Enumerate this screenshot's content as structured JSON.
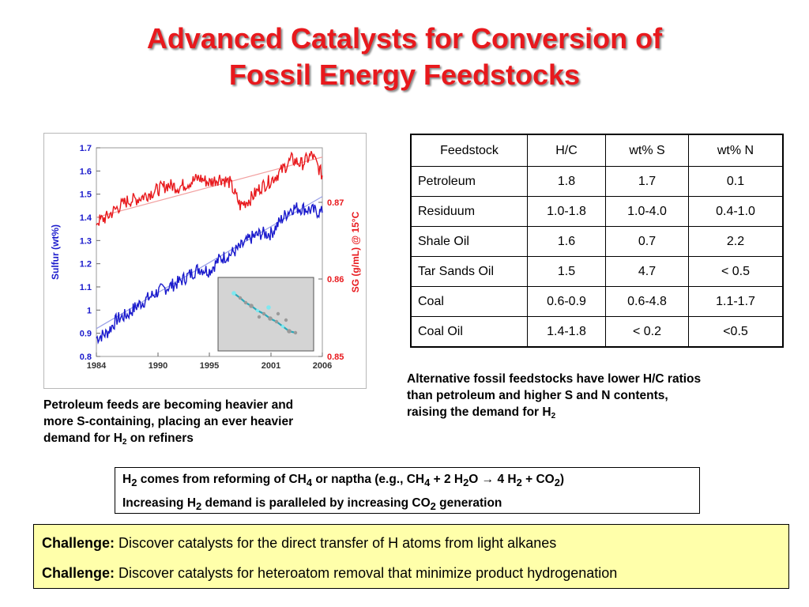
{
  "title": {
    "line1": "Advanced Catalysts for Conversion of",
    "line2": "Fossil Energy Feedstocks"
  },
  "chart_data": {
    "type": "line",
    "x_ticks": [
      "1984",
      "1990",
      "1995",
      "2001",
      "2006"
    ],
    "x_range": [
      1984,
      2006
    ],
    "y_left": {
      "label": "Sulfur (wt%)",
      "ticks": [
        "1.7",
        "1.6",
        "1.5",
        "1.4",
        "1.3",
        "1.2",
        "1.1",
        "1",
        "0.9",
        "0.8"
      ],
      "range": [
        0.8,
        1.7
      ],
      "color": "#1a1acc"
    },
    "y_right": {
      "label": "SG (g/mL) @ 15°C",
      "ticks": [
        "0.87",
        "0.86",
        "0.85"
      ],
      "color": "#e8191d"
    },
    "series": [
      {
        "axis": "left",
        "color": "#1a1acc",
        "x": [
          1984,
          1985,
          1986,
          1987,
          1988,
          1989,
          1990,
          1991,
          1992,
          1993,
          1994,
          1995,
          1996,
          1997,
          1998,
          1999,
          2000,
          2001,
          2002,
          2003,
          2004,
          2005,
          2006
        ],
        "y": [
          0.88,
          0.9,
          0.96,
          0.98,
          1.02,
          1.05,
          1.08,
          1.1,
          1.12,
          1.15,
          1.18,
          1.17,
          1.22,
          1.24,
          1.27,
          1.31,
          1.33,
          1.33,
          1.39,
          1.44,
          1.44,
          1.43,
          1.42
        ]
      },
      {
        "axis": "left",
        "color": "#e8191d",
        "x": [
          1984,
          1985,
          1986,
          1987,
          1988,
          1989,
          1990,
          1991,
          1992,
          1993,
          1994,
          1995,
          1996,
          1997,
          1998,
          1999,
          2000,
          2001,
          2002,
          2003,
          2004,
          2005,
          2006
        ],
        "y": [
          1.38,
          1.4,
          1.44,
          1.47,
          1.48,
          1.5,
          1.52,
          1.54,
          1.53,
          1.55,
          1.57,
          1.55,
          1.57,
          1.55,
          1.45,
          1.48,
          1.53,
          1.56,
          1.6,
          1.65,
          1.63,
          1.67,
          1.58
        ]
      }
    ],
    "trend_lines": [
      {
        "color": "#9aa0e8",
        "x": [
          1984,
          2006
        ],
        "y": [
          0.92,
          1.49
        ]
      },
      {
        "color": "#f2a0a0",
        "x": [
          1984,
          2006
        ],
        "y": [
          1.4,
          1.66
        ]
      }
    ],
    "inset": "molecule-image"
  },
  "table": {
    "headers": [
      "Feedstock",
      "H/C",
      "wt% S",
      "wt% N"
    ],
    "rows": [
      [
        "Petroleum",
        "1.8",
        "1.7",
        "0.1"
      ],
      [
        "Residuum",
        "1.0-1.8",
        "1.0-4.0",
        "0.4-1.0"
      ],
      [
        "Shale Oil",
        "1.6",
        "0.7",
        "2.2"
      ],
      [
        "Tar Sands Oil",
        "1.5",
        "4.7",
        "< 0.5"
      ],
      [
        "Coal",
        "0.6-0.9",
        "0.6-4.8",
        "1.1-1.7"
      ],
      [
        "Coal Oil",
        "1.4-1.8",
        "< 0.2",
        "<0.5"
      ]
    ]
  },
  "captions": {
    "left_line1": "Petroleum feeds are becoming heavier and",
    "left_line2": "more S-containing, placing an ever heavier",
    "left_line3_a": "demand for H",
    "left_line3_sub": "2",
    "left_line3_b": " on refiners",
    "right_line1": "Alternative fossil feedstocks have lower H/C ratios",
    "right_line2": "than petroleum and higher S and N contents,",
    "right_line3_a": "raising the demand for H",
    "right_line3_sub": "2"
  },
  "h2_box": {
    "l1_a": "H",
    "l1_s1": "2",
    "l1_b": " comes from reforming of CH",
    "l1_s2": "4",
    "l1_c": " or naptha (e.g., CH",
    "l1_s3": "4",
    "l1_d": " + 2 H",
    "l1_s4": "2",
    "l1_e": "O → 4 H",
    "l1_s5": "2",
    "l1_f": " + CO",
    "l1_s6": "2",
    "l1_g": ")",
    "l2_a": "Increasing H",
    "l2_s1": "2",
    "l2_b": " demand is paralleled by increasing CO",
    "l2_s2": "2",
    "l2_c": " generation"
  },
  "challenges": [
    {
      "label": "Challenge:",
      "text": " Discover catalysts for the direct transfer of H atoms from light alkanes"
    },
    {
      "label": "Challenge:",
      "text": " Discover catalysts for heteroatom removal that minimize product hydrogenation"
    }
  ],
  "colors": {
    "title": "#e8191d",
    "challenge_bg": "#ffffaa",
    "sulfur": "#1a1acc",
    "sg": "#e8191d"
  }
}
